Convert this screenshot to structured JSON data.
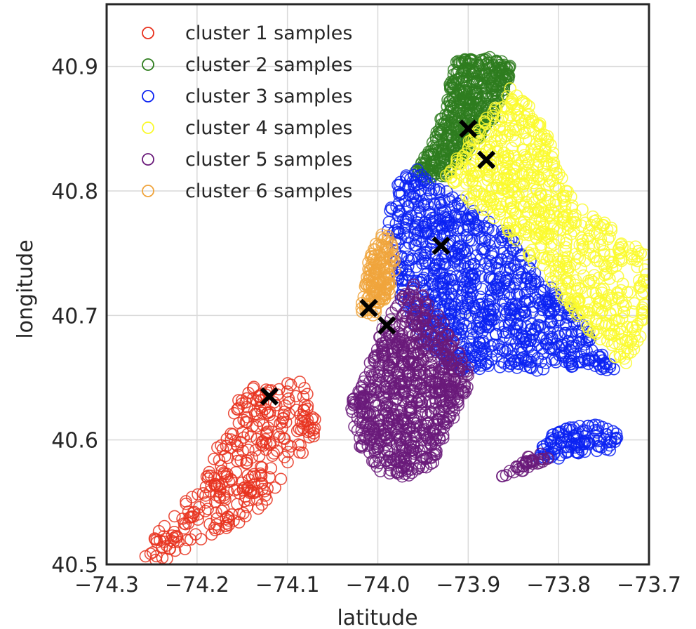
{
  "chart_data": {
    "type": "scatter",
    "xlabel": "latitude",
    "ylabel": "longitude",
    "xlim": [
      -74.3,
      -73.7
    ],
    "ylim": [
      40.5,
      40.95
    ],
    "xticks": [
      "−74.3",
      "−74.2",
      "−74.1",
      "−74.0",
      "−73.9",
      "−73.8",
      "−73.7"
    ],
    "xtick_values": [
      -74.3,
      -74.2,
      -74.1,
      -74.0,
      -73.9,
      -73.8,
      -73.7
    ],
    "yticks": [
      "40.5",
      "40.6",
      "40.7",
      "40.8",
      "40.9"
    ],
    "ytick_values": [
      40.5,
      40.6,
      40.7,
      40.8,
      40.9
    ],
    "grid": true,
    "legend_position": "top-left",
    "marker": "open-circle",
    "series": [
      {
        "name": "cluster 1 samples",
        "color": "#e8321e",
        "region": [
          [
            -74.26,
            40.505
          ],
          [
            -74.24,
            40.53
          ],
          [
            -74.2,
            40.56
          ],
          [
            -74.18,
            40.595
          ],
          [
            -74.16,
            40.62
          ],
          [
            -74.155,
            40.638
          ],
          [
            -74.13,
            40.645
          ],
          [
            -74.085,
            40.647
          ],
          [
            -74.07,
            40.63
          ],
          [
            -74.065,
            40.61
          ],
          [
            -74.08,
            40.59
          ],
          [
            -74.1,
            40.575
          ],
          [
            -74.13,
            40.545
          ],
          [
            -74.16,
            40.53
          ],
          [
            -74.2,
            40.518
          ],
          [
            -74.24,
            40.5
          ]
        ],
        "count": 330
      },
      {
        "name": "cluster 2 samples",
        "color": "#2e7d1e",
        "region": [
          [
            -73.96,
            40.815
          ],
          [
            -73.94,
            40.84
          ],
          [
            -73.925,
            40.87
          ],
          [
            -73.915,
            40.905
          ],
          [
            -73.875,
            40.908
          ],
          [
            -73.85,
            40.9
          ],
          [
            -73.855,
            40.89
          ],
          [
            -73.87,
            40.86
          ],
          [
            -73.9,
            40.83
          ],
          [
            -73.92,
            40.815
          ],
          [
            -73.935,
            40.805
          ]
        ],
        "count": 520
      },
      {
        "name": "cluster 3 samples",
        "color": "#0a22f2",
        "region": [
          [
            -73.98,
            40.81
          ],
          [
            -73.96,
            40.82
          ],
          [
            -73.935,
            40.805
          ],
          [
            -73.9,
            40.79
          ],
          [
            -73.87,
            40.775
          ],
          [
            -73.83,
            40.745
          ],
          [
            -73.78,
            40.7
          ],
          [
            -73.74,
            40.66
          ],
          [
            -73.73,
            40.652
          ],
          [
            -73.77,
            40.66
          ],
          [
            -73.82,
            40.655
          ],
          [
            -73.86,
            40.658
          ],
          [
            -73.91,
            40.655
          ],
          [
            -73.94,
            40.67
          ],
          [
            -73.96,
            40.69
          ],
          [
            -73.975,
            40.715
          ],
          [
            -73.98,
            40.74
          ],
          [
            -73.99,
            40.77
          ]
        ],
        "count": 1000
      },
      {
        "name": "cluster 3 samples",
        "color": "#0a22f2",
        "legend": false,
        "region": [
          [
            -73.82,
            40.595
          ],
          [
            -73.81,
            40.605
          ],
          [
            -73.79,
            40.61
          ],
          [
            -73.76,
            40.613
          ],
          [
            -73.735,
            40.607
          ],
          [
            -73.735,
            40.592
          ],
          [
            -73.77,
            40.59
          ],
          [
            -73.8,
            40.585
          ],
          [
            -73.825,
            40.585
          ]
        ],
        "count": 120
      },
      {
        "name": "cluster 4 samples",
        "color": "#fafa2d",
        "region": [
          [
            -73.93,
            40.81
          ],
          [
            -73.9,
            40.84
          ],
          [
            -73.87,
            40.87
          ],
          [
            -73.85,
            40.885
          ],
          [
            -73.82,
            40.86
          ],
          [
            -73.8,
            40.82
          ],
          [
            -73.78,
            40.79
          ],
          [
            -73.74,
            40.77
          ],
          [
            -73.705,
            40.75
          ],
          [
            -73.7,
            40.72
          ],
          [
            -73.71,
            40.68
          ],
          [
            -73.72,
            40.66
          ],
          [
            -73.74,
            40.665
          ],
          [
            -73.78,
            40.7
          ],
          [
            -73.83,
            40.745
          ],
          [
            -73.87,
            40.775
          ],
          [
            -73.9,
            40.79
          ]
        ],
        "count": 720
      },
      {
        "name": "cluster 5 samples",
        "color": "#6a1a7a",
        "region": [
          [
            -74.03,
            40.63
          ],
          [
            -74.01,
            40.66
          ],
          [
            -73.995,
            40.69
          ],
          [
            -73.985,
            40.705
          ],
          [
            -73.96,
            40.725
          ],
          [
            -73.94,
            40.71
          ],
          [
            -73.92,
            40.685
          ],
          [
            -73.9,
            40.66
          ],
          [
            -73.9,
            40.64
          ],
          [
            -73.92,
            40.61
          ],
          [
            -73.94,
            40.58
          ],
          [
            -73.97,
            40.57
          ],
          [
            -74.0,
            40.575
          ],
          [
            -74.025,
            40.6
          ]
        ],
        "count": 820
      },
      {
        "name": "cluster 5 samples",
        "color": "#6a1a7a",
        "legend": false,
        "region": [
          [
            -73.865,
            40.57
          ],
          [
            -73.84,
            40.585
          ],
          [
            -73.82,
            40.59
          ],
          [
            -73.81,
            40.585
          ],
          [
            -73.84,
            40.575
          ]
        ],
        "count": 40
      },
      {
        "name": "cluster 6 samples",
        "color": "#f0a43c",
        "region": [
          [
            -74.02,
            40.7
          ],
          [
            -74.01,
            40.745
          ],
          [
            -73.995,
            40.77
          ],
          [
            -73.985,
            40.76
          ],
          [
            -73.98,
            40.74
          ],
          [
            -73.985,
            40.72
          ],
          [
            -74.0,
            40.7
          ]
        ],
        "count": 160
      }
    ],
    "centroids": [
      {
        "x": -74.12,
        "y": 40.635
      },
      {
        "x": -74.01,
        "y": 40.706
      },
      {
        "x": -73.99,
        "y": 40.692
      },
      {
        "x": -73.93,
        "y": 40.756
      },
      {
        "x": -73.9,
        "y": 40.85
      },
      {
        "x": -73.88,
        "y": 40.825
      }
    ],
    "centroid_color": "#000000"
  }
}
